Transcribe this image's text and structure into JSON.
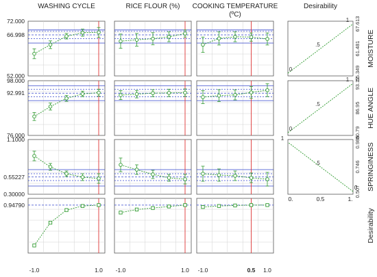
{
  "chart_data": {
    "type": "line",
    "title": "",
    "columns": [
      {
        "name": "WASHING CYCLE",
        "x": [
          -1.0,
          -0.5,
          0.0,
          0.5,
          1.0
        ],
        "current": 1.0
      },
      {
        "name": "RICE FLOUR (%)",
        "x": [
          -1.0,
          -0.5,
          0.0,
          0.5,
          1.0
        ],
        "current": 1.0
      },
      {
        "name": "COOKING TEMPERATURE (ºC)",
        "x": [
          -1.0,
          -0.5,
          0.0,
          0.5,
          1.0
        ],
        "current": 0.5
      }
    ],
    "desirability_column_title": "Desirability",
    "rows": [
      {
        "name": "MOISTURE",
        "ylim": [
          52.0,
          72.0
        ],
        "yticks": [
          "72.000",
          "66.998",
          "52.000"
        ],
        "predicted": 66.998,
        "ci": [
          65.6,
          68.3
        ],
        "limits": [
          64.0,
          68.8
        ],
        "series": [
          {
            "y": [
              60.1,
              63.4,
              66.5,
              67.8,
              67.9
            ],
            "err": [
              1.8,
              1.4,
              1.0,
              1.3,
              1.8
            ]
          },
          {
            "y": [
              64.7,
              65.2,
              65.6,
              66.3,
              67.5
            ],
            "err": [
              2.6,
              2.3,
              2.2,
              1.8,
              1.3
            ]
          },
          {
            "y": [
              63.4,
              65.7,
              66.3,
              66.2,
              65.5
            ],
            "err": [
              2.8,
              2.4,
              1.8,
              1.5,
              2.2
            ]
          }
        ],
        "desirability": {
          "response_ticks": [
            "55.349",
            "61.481",
            "67.613"
          ],
          "xlim": [
            55.349,
            67.613
          ],
          "points": [
            [
              55.349,
              0.0
            ],
            [
              67.613,
              1.0
            ]
          ],
          "labels": [
            "0",
            ".5",
            "1"
          ]
        }
      },
      {
        "name": "HUE ANGLE",
        "ylim": [
          76.0,
          98.0
        ],
        "yticks": [
          "98.000",
          "92.991",
          "76.000"
        ],
        "predicted": 92.991,
        "ci": [
          91.5,
          94.5
        ],
        "limits": [
          90.0,
          96.0
        ],
        "series": [
          {
            "y": [
              83.6,
              87.6,
              90.9,
              92.7,
              93.2
            ],
            "err": [
              1.6,
              1.4,
              1.2,
              1.1,
              1.4
            ]
          },
          {
            "y": [
              92.2,
              92.6,
              93.0,
              93.1,
              93.2
            ],
            "err": [
              1.8,
              1.5,
              1.4,
              1.5,
              1.5
            ]
          },
          {
            "y": [
              91.4,
              92.0,
              92.3,
              93.3,
              94.2
            ],
            "err": [
              2.6,
              2.4,
              2.0,
              2.4,
              2.6
            ]
          }
        ],
        "desirability": {
          "response_ticks": [
            "80.79",
            "86.95",
            "93.12"
          ],
          "xlim": [
            80.79,
            93.12
          ],
          "points": [
            [
              80.79,
              0.0
            ],
            [
              93.12,
              1.0
            ]
          ],
          "labels": [
            "0",
            ".5",
            "1"
          ]
        }
      },
      {
        "name": "SPRINGINESS",
        "ylim": [
          0.3,
          1.1
        ],
        "yticks": [
          "1.1000",
          "0.55227",
          "0.30000"
        ],
        "predicted": 0.55227,
        "ci": [
          0.5,
          0.6
        ],
        "limits": [
          0.42,
          0.66
        ],
        "series": [
          {
            "y": [
              0.86,
              0.7,
              0.6,
              0.55,
              0.53
            ],
            "err": [
              0.07,
              0.05,
              0.04,
              0.05,
              0.07
            ]
          },
          {
            "y": [
              0.73,
              0.66,
              0.59,
              0.54,
              0.52
            ],
            "err": [
              0.1,
              0.07,
              0.06,
              0.05,
              0.07
            ]
          },
          {
            "y": [
              0.6,
              0.58,
              0.57,
              0.54,
              0.52
            ],
            "err": [
              0.11,
              0.09,
              0.07,
              0.07,
              0.1
            ]
          }
        ],
        "desirability": {
          "response_ticks": [
            "0.507",
            "0.746",
            "0.985"
          ],
          "xlim": [
            0.507,
            0.985
          ],
          "points": [
            [
              0.985,
              0.0
            ],
            [
              0.507,
              1.0
            ]
          ],
          "labels": [
            "0",
            ".5",
            "1"
          ]
        }
      }
    ],
    "desirability_row": {
      "name": "Desirability",
      "ylim": [
        0.0,
        1.0
      ],
      "ytick": "0.94790",
      "predicted": 0.9479,
      "series": [
        {
          "y": [
            0.15,
            0.6,
            0.85,
            0.93,
            0.9479
          ]
        },
        {
          "y": [
            0.8,
            0.86,
            0.89,
            0.92,
            0.9479
          ]
        },
        {
          "y": [
            0.91,
            0.93,
            0.94,
            0.948,
            0.9479
          ]
        }
      ]
    },
    "desirability_xaxis": {
      "ticks": [
        "0.",
        "0.5",
        "1."
      ]
    },
    "bottom_ticks": [
      [
        "-1.0",
        "1.0"
      ],
      [
        "-1.0",
        "1.0"
      ],
      [
        "-1.0",
        "0.5",
        "1.0"
      ]
    ],
    "colors": {
      "points": "#2e9a2e",
      "reference": "#3344cc",
      "current": "#dd3333",
      "grid": "#d0d0d0",
      "axis": "#555555"
    }
  }
}
